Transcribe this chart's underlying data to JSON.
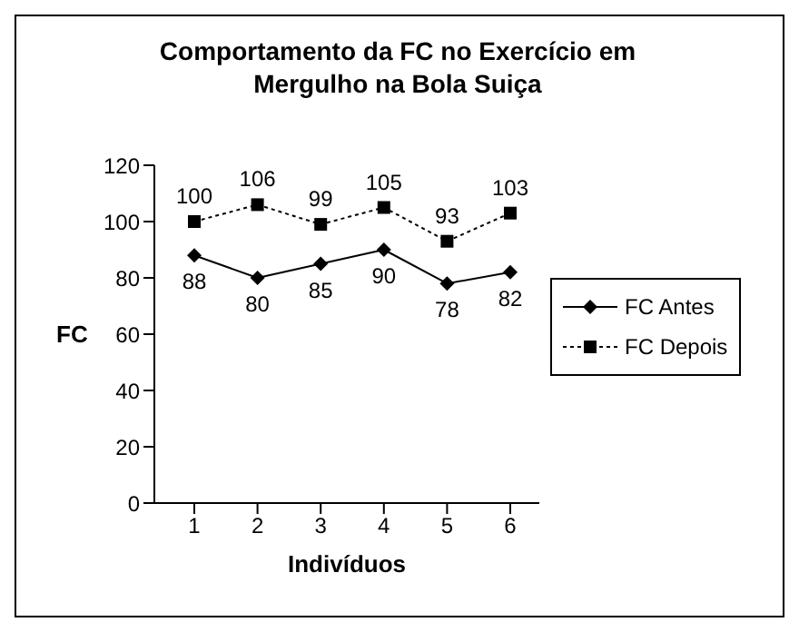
{
  "chart_data": {
    "type": "line",
    "title": "Comportamento da FC no Exercício em Mergulho na Bola Suiça",
    "xlabel": "Indivíduos",
    "ylabel": "FC",
    "categories": [
      "1",
      "2",
      "3",
      "4",
      "5",
      "6"
    ],
    "series": [
      {
        "name": "FC Antes",
        "color": "#000000",
        "marker": "diamond",
        "line_style": "solid",
        "values": [
          88,
          80,
          85,
          90,
          78,
          82
        ]
      },
      {
        "name": "FC Depois",
        "color": "#000000",
        "marker": "square",
        "line_style": "dotted",
        "values": [
          100,
          106,
          99,
          105,
          93,
          103
        ]
      }
    ],
    "ylim": [
      0,
      120
    ],
    "yticks": [
      0,
      20,
      40,
      60,
      80,
      100,
      120
    ],
    "grid": false,
    "legend": "right",
    "data_labels": true
  }
}
